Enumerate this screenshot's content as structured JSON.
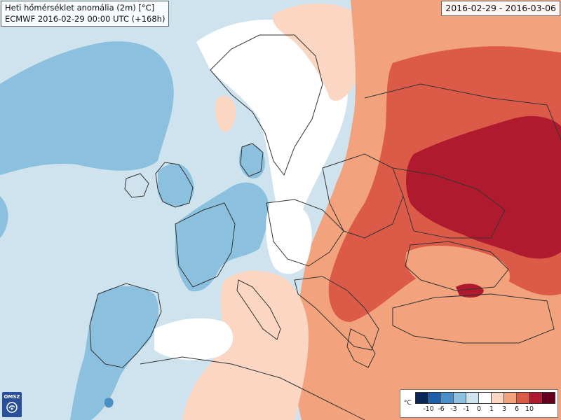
{
  "title": {
    "line1": "Heti hőmérséklet anomália (2m) [°C]",
    "line2": "ECMWF 2016-02-29 00:00 UTC (+168h)"
  },
  "period": "2016-02-29 - 2016-03-06",
  "logo": {
    "text": "OMSZ",
    "icon": "omsz-logo-icon"
  },
  "legend": {
    "unit": "°C",
    "colors": [
      "#0a2656",
      "#1e5fa8",
      "#4a90c6",
      "#8bc1de",
      "#cfe3ee",
      "#ffffff",
      "#fbd6c2",
      "#f2a27c",
      "#db5b48",
      "#b01a2e",
      "#67001f"
    ],
    "ticks": [
      "-10",
      "-6",
      "-3",
      "-1",
      "0",
      "1",
      "3",
      "6",
      "10"
    ]
  },
  "palette": {
    "sea_neutral": "#cfe3ee",
    "cold_light": "#8bc1de",
    "cold_mid": "#4a90c6",
    "neutral_white": "#ffffff",
    "warm_light": "#fbd6c2",
    "warm_mid": "#f2a27c",
    "warm_strong": "#db5b48",
    "hot": "#b01a2e",
    "border_line": "#333333"
  }
}
